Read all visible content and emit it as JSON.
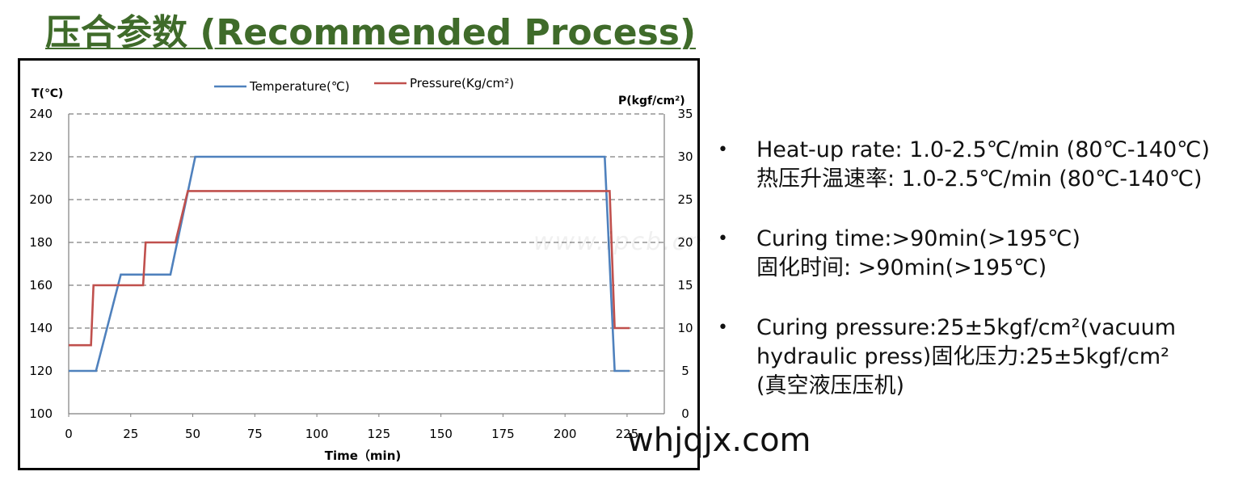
{
  "slide": {
    "title": "压合参数 (Recommended Process)",
    "bullets": [
      [
        "Heat-up rate: 1.0-2.5℃/min (80℃-140℃)",
        "热压升温速率: 1.0-2.5℃/min (80℃-140℃)"
      ],
      [
        "Curing time:>90min(>195℃)",
        "固化时间: >90min(>195℃)"
      ],
      [
        "Curing pressure:25±5kgf/cm²(vacuum",
        "hydraulic press)固化压力:25±5kgf/cm²",
        "(真空液压压机)"
      ]
    ],
    "bullet_symbol": "•",
    "watermark": "whjqjx.com",
    "faint_watermark": "www.ipcb.cn"
  },
  "chart_data": {
    "type": "line",
    "xlabel": "Time（min)",
    "ylabel_left": "T(℃)",
    "ylabel_right": "P(kgf/cm²)",
    "xlim": [
      0,
      240
    ],
    "ylim_left": [
      100,
      240
    ],
    "ylim_right": [
      0,
      35
    ],
    "x_ticks": [
      0,
      25,
      50,
      75,
      100,
      125,
      150,
      175,
      200,
      225
    ],
    "y_ticks_left": [
      100,
      120,
      140,
      160,
      180,
      200,
      220,
      240
    ],
    "y_ticks_right": [
      0,
      5,
      10,
      15,
      20,
      25,
      30,
      35
    ],
    "grid": "horizontal dashed",
    "legend_position": "top",
    "series": [
      {
        "name": "Temperature(℃)",
        "axis": "left",
        "color": "#4f81bd",
        "points": [
          [
            0,
            120
          ],
          [
            11,
            120
          ],
          [
            21,
            165
          ],
          [
            41,
            165
          ],
          [
            51,
            220
          ],
          [
            216,
            220
          ],
          [
            220,
            120
          ],
          [
            226,
            120
          ]
        ]
      },
      {
        "name": "Pressure(Kg/cm²)",
        "axis": "right",
        "color": "#c0504d",
        "points": [
          [
            0,
            8
          ],
          [
            9,
            8
          ],
          [
            10,
            15
          ],
          [
            30,
            15
          ],
          [
            31,
            20
          ],
          [
            43,
            20
          ],
          [
            48,
            26
          ],
          [
            218,
            26
          ],
          [
            220,
            10
          ],
          [
            226,
            10
          ]
        ]
      }
    ]
  }
}
